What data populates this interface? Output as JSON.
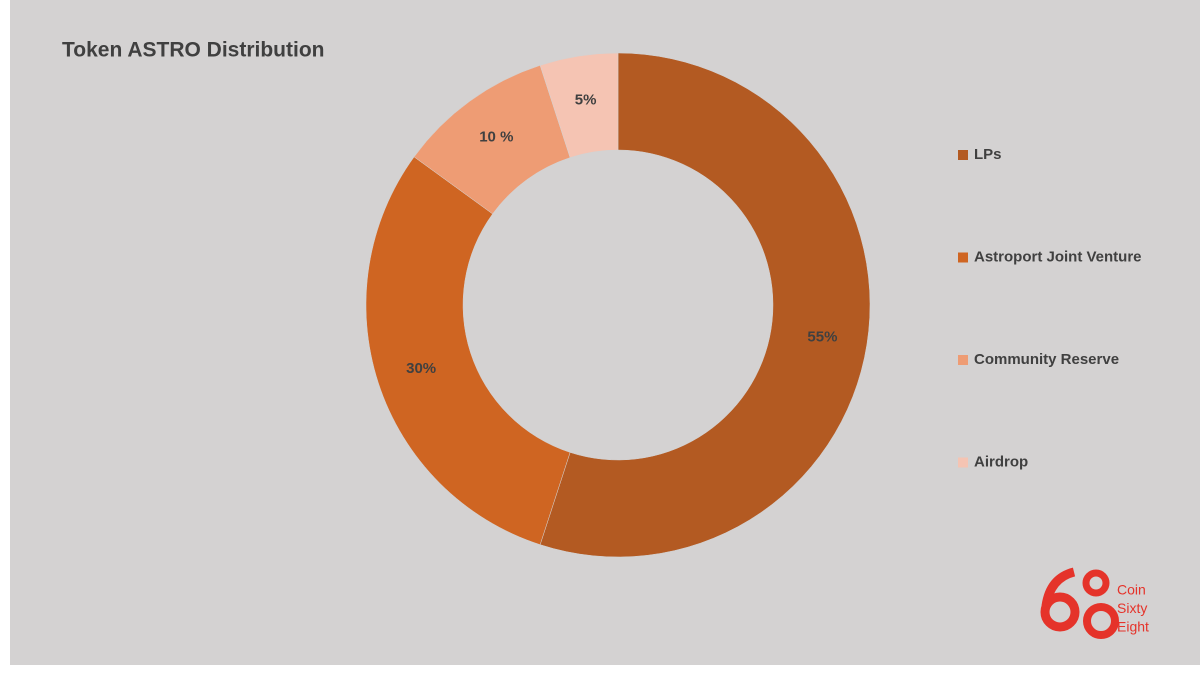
{
  "chart_data": {
    "type": "donut",
    "title": "Token ASTRO Distribution",
    "categories": [
      "LPs",
      "Astroport Joint Venture",
      "Community Reserve",
      "Airdrop"
    ],
    "values": [
      55,
      30,
      10,
      5
    ],
    "value_labels": [
      "55%",
      "30%",
      "10 %",
      "5%"
    ],
    "colors": [
      "#b35a22",
      "#cf6522",
      "#ee9c74",
      "#f5c4b3"
    ],
    "legend": "right"
  },
  "watermark": [
    "Coin",
    "Sixty",
    "Eight"
  ]
}
